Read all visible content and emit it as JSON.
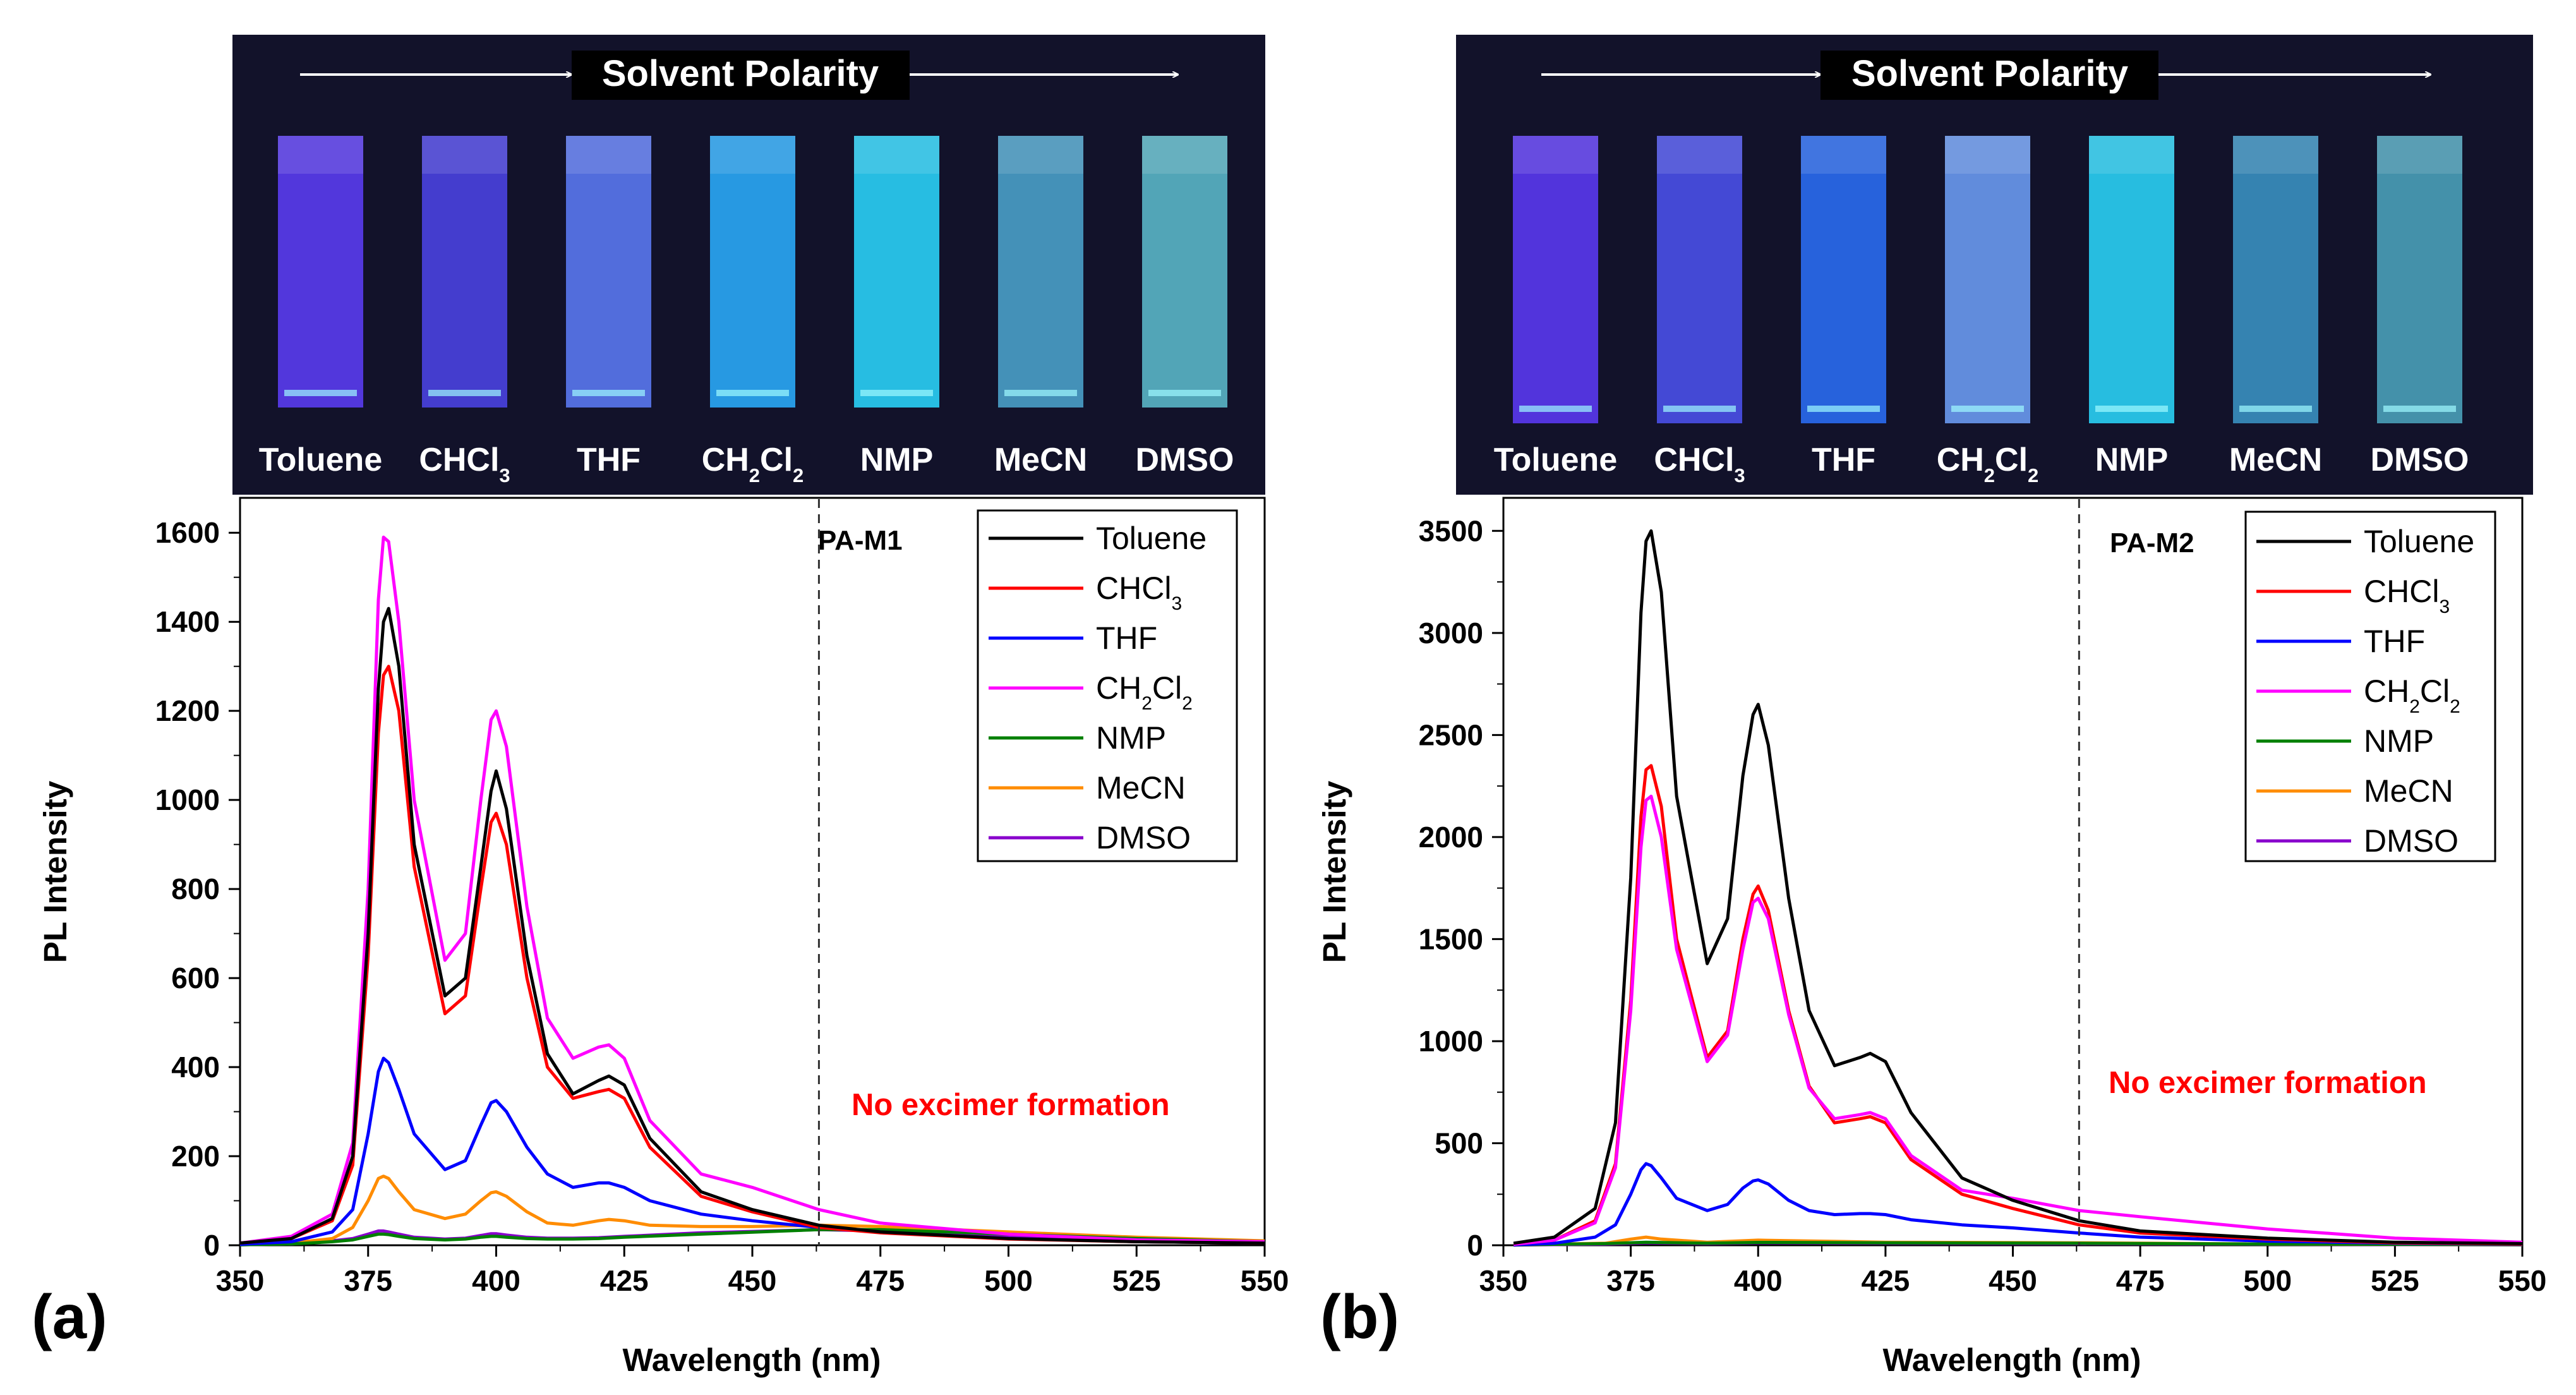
{
  "chart_data": [
    {
      "type": "line",
      "panel_label": "(a)",
      "sample_label": "PA-M1",
      "annotation": "No excimer formation",
      "xlabel": "Wavelength (nm)",
      "ylabel": "PL Intensity",
      "xlim": [
        350,
        550
      ],
      "ylim": [
        0,
        1650
      ],
      "xticks": [
        350,
        375,
        400,
        425,
        450,
        475,
        500,
        525,
        550
      ],
      "yticks": [
        0,
        200,
        400,
        600,
        800,
        1000,
        1200,
        1400,
        1600
      ],
      "dashed_line_x": 463,
      "photo": {
        "title": "Solvent Polarity",
        "cuvette_labels": [
          "Toluene",
          "CHCl3",
          "THF",
          "CH2Cl2",
          "NMP",
          "MeCN",
          "DMSO"
        ],
        "cuvette_colors": [
          "#5a3cf0",
          "#4a42e0",
          "#5a78f0",
          "#2aa8f6",
          "#2ad0f6",
          "#4aa0c8",
          "#5ab6c6"
        ]
      },
      "series": [
        {
          "name": "Toluene",
          "color": "#000000",
          "x": [
            350,
            360,
            368,
            372,
            375,
            377,
            378,
            379,
            381,
            384,
            390,
            394,
            397,
            399,
            400,
            402,
            406,
            410,
            415,
            420,
            422,
            425,
            430,
            440,
            450,
            463,
            475,
            500,
            525,
            550
          ],
          "y": [
            5,
            15,
            60,
            200,
            700,
            1250,
            1400,
            1430,
            1300,
            900,
            560,
            600,
            850,
            1020,
            1065,
            980,
            650,
            430,
            340,
            370,
            380,
            360,
            240,
            120,
            80,
            45,
            30,
            15,
            8,
            5
          ]
        },
        {
          "name": "CHCl3",
          "color": "#ff0000",
          "x": [
            350,
            360,
            368,
            372,
            375,
            377,
            378,
            379,
            381,
            384,
            390,
            394,
            397,
            399,
            400,
            402,
            406,
            410,
            415,
            420,
            422,
            425,
            430,
            440,
            450,
            463,
            475,
            500,
            525,
            550
          ],
          "y": [
            5,
            15,
            55,
            180,
            650,
            1150,
            1280,
            1300,
            1200,
            850,
            520,
            560,
            800,
            950,
            970,
            900,
            600,
            400,
            330,
            345,
            350,
            330,
            220,
            110,
            75,
            40,
            28,
            14,
            8,
            5
          ]
        },
        {
          "name": "THF",
          "color": "#0000ff",
          "x": [
            350,
            360,
            368,
            372,
            375,
            377,
            378,
            379,
            381,
            384,
            390,
            394,
            397,
            399,
            400,
            402,
            406,
            410,
            415,
            420,
            422,
            425,
            430,
            440,
            450,
            463,
            475,
            500,
            525,
            550
          ],
          "y": [
            2,
            8,
            30,
            80,
            250,
            390,
            420,
            410,
            350,
            250,
            170,
            190,
            270,
            320,
            325,
            300,
            220,
            160,
            130,
            140,
            140,
            130,
            100,
            70,
            55,
            40,
            30,
            15,
            8,
            5
          ]
        },
        {
          "name": "CH2Cl2",
          "color": "#ff00ff",
          "x": [
            350,
            360,
            368,
            372,
            375,
            377,
            378,
            379,
            381,
            384,
            390,
            394,
            397,
            399,
            400,
            402,
            406,
            410,
            415,
            420,
            422,
            425,
            430,
            440,
            450,
            463,
            475,
            500,
            525,
            550
          ],
          "y": [
            5,
            20,
            70,
            230,
            800,
            1450,
            1590,
            1580,
            1400,
            1000,
            640,
            700,
            1000,
            1180,
            1200,
            1120,
            760,
            510,
            420,
            445,
            450,
            420,
            280,
            160,
            130,
            80,
            50,
            25,
            12,
            8
          ]
        },
        {
          "name": "NMP",
          "color": "#008000",
          "x": [
            350,
            360,
            368,
            372,
            375,
            377,
            378,
            379,
            381,
            384,
            390,
            394,
            397,
            399,
            400,
            402,
            406,
            410,
            415,
            420,
            425,
            440,
            463,
            475,
            500,
            525,
            550
          ],
          "y": [
            1,
            3,
            8,
            12,
            20,
            25,
            25,
            24,
            20,
            15,
            12,
            14,
            18,
            20,
            20,
            18,
            15,
            14,
            14,
            15,
            18,
            25,
            35,
            35,
            25,
            15,
            8
          ]
        },
        {
          "name": "MeCN",
          "color": "#ff8c00",
          "x": [
            350,
            360,
            368,
            372,
            375,
            377,
            378,
            379,
            381,
            384,
            390,
            394,
            397,
            399,
            400,
            402,
            406,
            410,
            415,
            420,
            422,
            425,
            430,
            440,
            450,
            463,
            475,
            500,
            525,
            550
          ],
          "y": [
            2,
            5,
            15,
            40,
            100,
            150,
            155,
            150,
            120,
            80,
            60,
            70,
            100,
            118,
            120,
            110,
            75,
            50,
            45,
            55,
            58,
            55,
            45,
            42,
            42,
            45,
            42,
            30,
            18,
            10
          ]
        },
        {
          "name": "DMSO",
          "color": "#8800cc",
          "x": [
            350,
            360,
            368,
            372,
            375,
            377,
            378,
            379,
            381,
            384,
            390,
            394,
            397,
            399,
            400,
            402,
            406,
            410,
            415,
            420,
            425,
            440,
            463,
            475,
            500,
            525,
            550
          ],
          "y": [
            1,
            3,
            10,
            15,
            25,
            32,
            32,
            30,
            25,
            18,
            14,
            16,
            22,
            26,
            26,
            23,
            18,
            16,
            16,
            17,
            20,
            28,
            35,
            32,
            22,
            14,
            8
          ]
        }
      ]
    },
    {
      "type": "line",
      "panel_label": "(b)",
      "sample_label": "PA-M2",
      "annotation": "No excimer formation",
      "xlabel": "Wavelength (nm)",
      "ylabel": "PL Intensity",
      "xlim": [
        350,
        550
      ],
      "ylim": [
        0,
        3600
      ],
      "xticks": [
        350,
        375,
        400,
        425,
        450,
        475,
        500,
        525,
        550
      ],
      "yticks": [
        0,
        500,
        1000,
        1500,
        2000,
        2500,
        3000,
        3500
      ],
      "dashed_line_x": 463,
      "photo": {
        "title": "Solvent Polarity",
        "cuvette_labels": [
          "Toluene",
          "CHCl3",
          "THF",
          "CH2Cl2",
          "NMP",
          "MeCN",
          "DMSO"
        ],
        "cuvette_colors": [
          "#5a38f0",
          "#4a50e8",
          "#2a6cf0",
          "#6a9af0",
          "#2ad0f4",
          "#3a90c0",
          "#4aa0b8"
        ]
      },
      "series": [
        {
          "name": "Toluene",
          "color": "#000000",
          "x": [
            352,
            360,
            368,
            372,
            375,
            377,
            378,
            379,
            381,
            384,
            390,
            394,
            397,
            399,
            400,
            402,
            406,
            410,
            415,
            420,
            422,
            425,
            430,
            440,
            450,
            463,
            475,
            500,
            525,
            550
          ],
          "y": [
            10,
            40,
            180,
            600,
            1800,
            3100,
            3450,
            3500,
            3200,
            2200,
            1380,
            1600,
            2300,
            2600,
            2650,
            2450,
            1700,
            1150,
            880,
            920,
            940,
            900,
            650,
            330,
            220,
            120,
            70,
            35,
            15,
            8
          ]
        },
        {
          "name": "CHCl3",
          "color": "#ff0000",
          "x": [
            352,
            360,
            368,
            372,
            375,
            377,
            378,
            379,
            381,
            384,
            390,
            394,
            397,
            399,
            400,
            402,
            406,
            410,
            415,
            420,
            422,
            425,
            430,
            440,
            450,
            463,
            475,
            500,
            525,
            550
          ],
          "y": [
            5,
            25,
            120,
            400,
            1200,
            2100,
            2330,
            2350,
            2150,
            1500,
            920,
            1050,
            1500,
            1720,
            1760,
            1640,
            1150,
            780,
            600,
            620,
            630,
            600,
            420,
            250,
            180,
            100,
            60,
            30,
            12,
            6
          ]
        },
        {
          "name": "THF",
          "color": "#0000ff",
          "x": [
            352,
            360,
            368,
            372,
            375,
            377,
            378,
            379,
            381,
            384,
            390,
            394,
            397,
            399,
            400,
            402,
            406,
            410,
            415,
            420,
            422,
            425,
            430,
            440,
            450,
            463,
            475,
            500,
            525,
            550
          ],
          "y": [
            2,
            10,
            40,
            100,
            250,
            370,
            400,
            390,
            330,
            230,
            170,
            200,
            280,
            315,
            320,
            300,
            220,
            170,
            150,
            155,
            155,
            150,
            125,
            100,
            85,
            60,
            40,
            20,
            10,
            5
          ]
        },
        {
          "name": "CH2Cl2",
          "color": "#ff00ff",
          "x": [
            352,
            360,
            368,
            372,
            375,
            377,
            378,
            379,
            381,
            384,
            390,
            394,
            397,
            399,
            400,
            402,
            406,
            410,
            415,
            420,
            422,
            425,
            430,
            440,
            450,
            463,
            475,
            500,
            525,
            550
          ],
          "y": [
            5,
            25,
            110,
            380,
            1150,
            1950,
            2180,
            2200,
            2000,
            1450,
            900,
            1030,
            1450,
            1680,
            1700,
            1600,
            1130,
            770,
            620,
            640,
            650,
            620,
            440,
            270,
            230,
            170,
            140,
            80,
            35,
            15
          ]
        },
        {
          "name": "NMP",
          "color": "#008000",
          "x": [
            352,
            370,
            378,
            390,
            400,
            425,
            463,
            500,
            550
          ],
          "y": [
            2,
            8,
            15,
            10,
            14,
            12,
            10,
            6,
            3
          ]
        },
        {
          "name": "MeCN",
          "color": "#ff8c00",
          "x": [
            352,
            370,
            375,
            378,
            381,
            390,
            400,
            425,
            463,
            500,
            550
          ],
          "y": [
            2,
            10,
            30,
            40,
            30,
            15,
            25,
            15,
            12,
            6,
            3
          ]
        },
        {
          "name": "DMSO",
          "color": "#8800cc",
          "x": [
            352,
            370,
            378,
            390,
            400,
            425,
            463,
            500,
            550
          ],
          "y": [
            1,
            6,
            12,
            8,
            12,
            10,
            8,
            5,
            2
          ]
        }
      ]
    }
  ]
}
